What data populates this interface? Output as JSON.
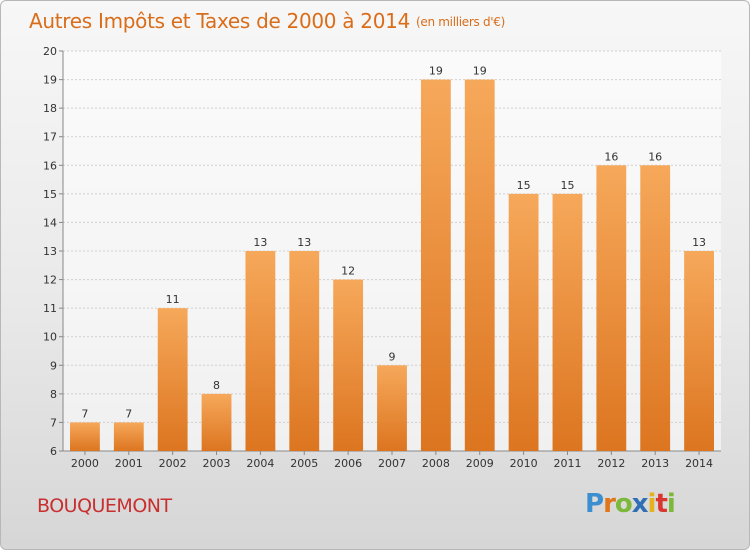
{
  "header": {
    "title": "Autres Impôts et Taxes de 2000 à 2014",
    "unit": "(en milliers d'€)"
  },
  "footer": {
    "town": "BOUQUEMONT",
    "logo": "Proxiti"
  },
  "colors": {
    "bar_top": "#f6a85a",
    "bar_bottom": "#dc7520",
    "title": "#d96d1a",
    "town": "#c8302f"
  },
  "logo_colors": [
    "#3b8fd0",
    "#e0761a",
    "#7cb83a",
    "#2f6fb6",
    "#e5b21b",
    "#d9362f",
    "#7cb83a"
  ],
  "chart_data": {
    "type": "bar",
    "title": "Autres Impôts et Taxes de 2000 à 2014",
    "subtitle": "(en milliers d'€)",
    "xlabel": "",
    "ylabel": "",
    "ylim": [
      6,
      20
    ],
    "yticks": [
      6,
      7,
      8,
      9,
      10,
      11,
      12,
      13,
      14,
      15,
      16,
      17,
      18,
      19,
      20
    ],
    "grid": true,
    "categories": [
      "2000",
      "2001",
      "2002",
      "2003",
      "2004",
      "2005",
      "2006",
      "2007",
      "2008",
      "2009",
      "2010",
      "2011",
      "2012",
      "2013",
      "2014"
    ],
    "values": [
      7,
      7,
      11,
      8,
      13,
      13,
      12,
      9,
      19,
      19,
      15,
      15,
      16,
      16,
      13
    ]
  }
}
